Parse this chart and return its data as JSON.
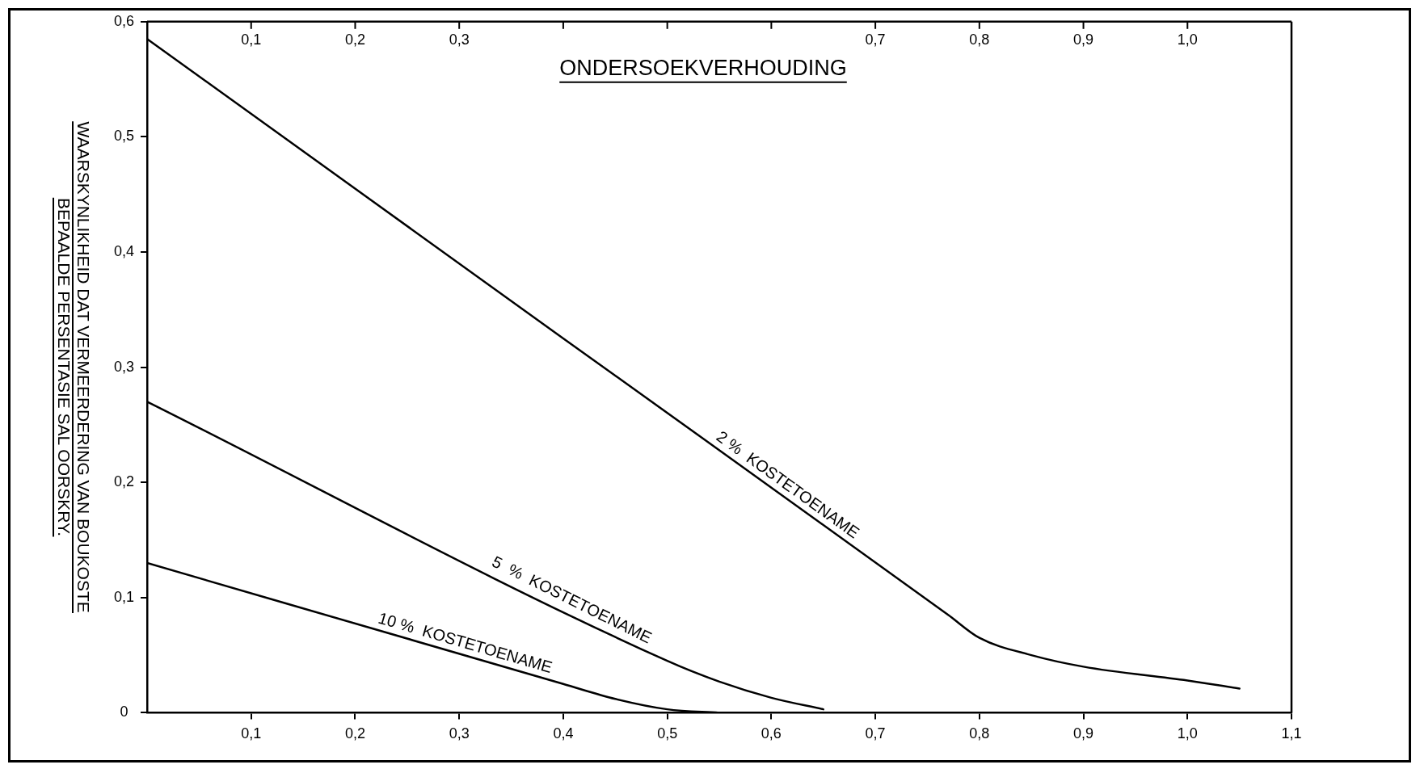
{
  "chart_data": {
    "type": "line",
    "x2label": "ONDERSOEKVERHOUDING",
    "ylabel": "WAARSKYNLIKHEID DAT VERMEERDERING VAN BOUKOSTE\nBEPAALDE PERSENTASIE SAL OORSKRY.",
    "xlim": [
      0,
      1.1
    ],
    "xticks": [
      {
        "value": 0.1,
        "label": "0,1"
      },
      {
        "value": 0.2,
        "label": "0,2"
      },
      {
        "value": 0.3,
        "label": "0,3"
      },
      {
        "value": 0.4,
        "label": "0,4"
      },
      {
        "value": 0.5,
        "label": "0,5"
      },
      {
        "value": 0.6,
        "label": "0,6"
      },
      {
        "value": 0.7,
        "label": "0,7"
      },
      {
        "value": 0.8,
        "label": "0,8"
      },
      {
        "value": 0.9,
        "label": "0,9"
      },
      {
        "value": 1.0,
        "label": "1,0"
      },
      {
        "value": 1.1,
        "label": "1,1"
      }
    ],
    "x2lim": [
      0,
      1.1
    ],
    "x2ticks": [
      {
        "value": 0.1,
        "label": "0,1"
      },
      {
        "value": 0.2,
        "label": "0,2"
      },
      {
        "value": 0.3,
        "label": "0,3"
      },
      {
        "value": 0.4,
        "label": null
      },
      {
        "value": 0.5,
        "label": null
      },
      {
        "value": 0.6,
        "label": null
      },
      {
        "value": 0.7,
        "label": "0,7"
      },
      {
        "value": 0.8,
        "label": "0,8"
      },
      {
        "value": 0.9,
        "label": "0,9"
      },
      {
        "value": 1.0,
        "label": "1,0"
      }
    ],
    "ylim": [
      0,
      0.6
    ],
    "yticks": [
      0,
      {
        "value": 0.1,
        "label": "0,1"
      },
      {
        "value": 0.2,
        "label": "0,2"
      },
      {
        "value": 0.3,
        "label": "0,3"
      },
      {
        "value": 0.4,
        "label": "0,4"
      },
      {
        "value": 0.5,
        "label": "0,5"
      },
      {
        "value": 0.6,
        "label": "0,6"
      }
    ],
    "grid": false,
    "legend": false,
    "marker": "none",
    "line_style": "solid",
    "series": [
      {
        "name": "2 %  KOSTETOENAME",
        "color": "#000000",
        "x": [
          0,
          0.4,
          0.77,
          0.8,
          0.85,
          0.9,
          1.0,
          1.05
        ],
        "values": [
          0.585,
          0.325,
          0.085,
          0.065,
          0.05,
          0.04,
          0.028,
          0.021
        ]
      },
      {
        "name": "5  %  KOSTETOENAME",
        "color": "#000000",
        "x": [
          0,
          0.5,
          0.55,
          0.6,
          0.65
        ],
        "values": [
          0.27,
          0.045,
          0.027,
          0.013,
          0.003
        ]
      },
      {
        "name": "10 %  KOSTETOENAME",
        "color": "#000000",
        "x": [
          0,
          0.4,
          0.45,
          0.5,
          0.55
        ],
        "values": [
          0.13,
          0.025,
          0.012,
          0.003,
          0
        ]
      }
    ]
  }
}
